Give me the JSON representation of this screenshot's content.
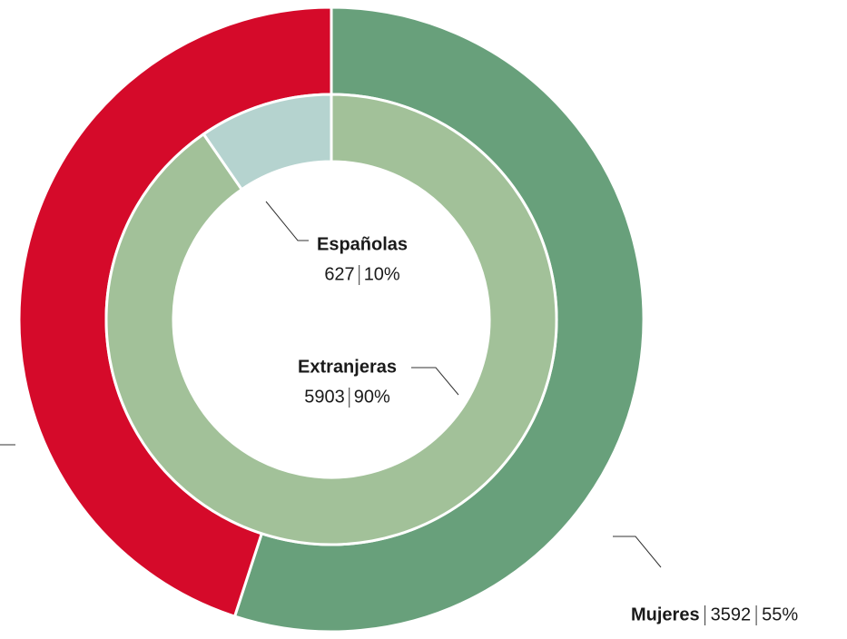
{
  "chart_data": {
    "type": "pie",
    "rings": [
      {
        "categories": [
          "Mujeres",
          null
        ],
        "values": [
          3592,
          2938
        ],
        "percent_labels": [
          "55%",
          null
        ],
        "colors": [
          "#68a07b",
          "#d50a2a"
        ]
      },
      {
        "categories": [
          "Extranjeras",
          "Españolas"
        ],
        "values": [
          5903,
          627
        ],
        "percent_labels": [
          "90%",
          "10%"
        ],
        "colors": [
          "#a2c199",
          "#b5d3cf"
        ]
      }
    ]
  }
}
